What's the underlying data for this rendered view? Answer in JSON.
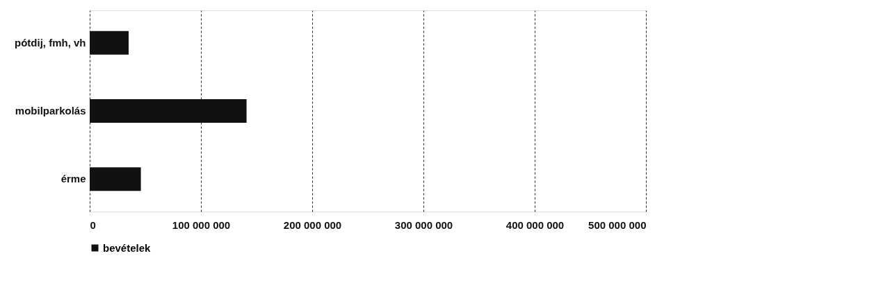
{
  "chart_data": {
    "type": "bar",
    "orientation": "horizontal",
    "categories": [
      "pótdij, fmh, vh",
      "mobilparkolás",
      "érme"
    ],
    "series": [
      {
        "name": "bevételek",
        "color": "#111111",
        "values": [
          35000000,
          141000000,
          46000000
        ]
      }
    ],
    "xlim": [
      0,
      500000000
    ],
    "xticks": [
      {
        "value": 0,
        "label": "0"
      },
      {
        "value": 100000000,
        "label": "100 000 000"
      },
      {
        "value": 200000000,
        "label": "200 000 000"
      },
      {
        "value": 300000000,
        "label": "300 000 000"
      },
      {
        "value": 400000000,
        "label": "400 000 000"
      },
      {
        "value": 500000000,
        "label": "500 000 000"
      }
    ],
    "grid": "x",
    "legend": "bottom"
  }
}
